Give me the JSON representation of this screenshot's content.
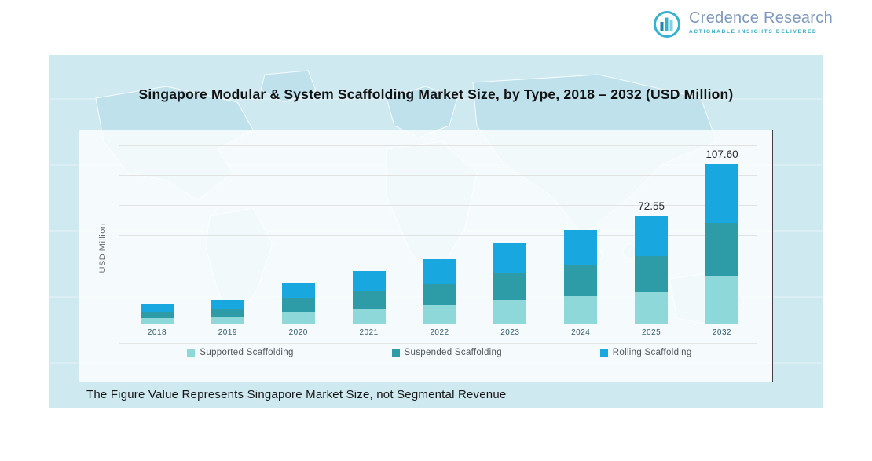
{
  "logo": {
    "brand": "Credence Research",
    "tagline": "Actionable Insights Delivered",
    "brand_color": "#7e99ba",
    "accent_color": "#2fa9c6"
  },
  "title": "Singapore Modular & System Scaffolding Market Size, by Type, 2018 – 2032 (USD Million)",
  "note": "The Figure Value Represents Singapore Market Size, not Segmental Revenue",
  "chart_data": {
    "type": "bar",
    "stacked": true,
    "title": "Singapore Modular & System Scaffolding Market Size, by Type, 2018 – 2032 (USD Million)",
    "xlabel": "",
    "ylabel": "USD Million",
    "categories": [
      "2018",
      "2019",
      "2020",
      "2021",
      "2022",
      "2023",
      "2024",
      "2025",
      "2032"
    ],
    "series": [
      {
        "name": "Supported Scaffolding",
        "color": "#8fd8da",
        "values": [
          4.1,
          4.9,
          8.4,
          10.8,
          13.1,
          16.2,
          18.9,
          21.8,
          32.3
        ]
      },
      {
        "name": "Suspended Scaffolding",
        "color": "#2e9ca6",
        "values": [
          4.5,
          5.4,
          9.2,
          11.9,
          14.5,
          17.8,
          20.8,
          23.9,
          35.5
        ]
      },
      {
        "name": "Rolling Scaffolding",
        "color": "#18a7de",
        "values": [
          5.1,
          6.0,
          10.3,
          13.3,
          16.2,
          20.0,
          23.4,
          26.85,
          39.8
        ]
      }
    ],
    "totals": [
      13.7,
      16.3,
      27.9,
      36.0,
      43.8,
      54.0,
      63.1,
      72.55,
      107.6
    ],
    "bar_labels": [
      "",
      "",
      "",
      "",
      "",
      "",
      "",
      "72.55",
      "107.60"
    ],
    "legend_position": "bottom",
    "gridlines": true,
    "ylim": [
      0,
      120
    ]
  }
}
